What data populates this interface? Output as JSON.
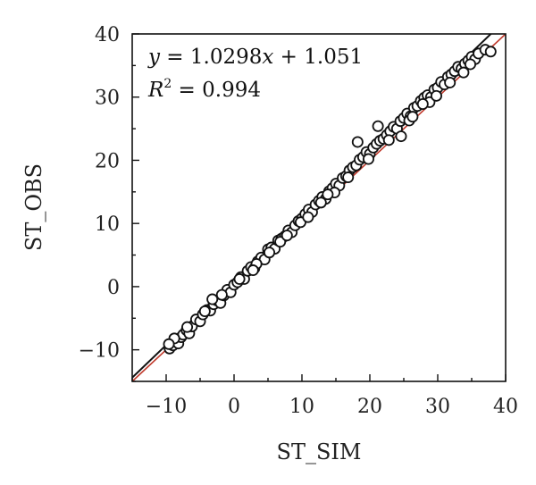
{
  "chart_data": {
    "type": "scatter",
    "title": "",
    "xlabel": "ST_SIM",
    "ylabel": "ST_OBS",
    "xlim": [
      -15,
      40
    ],
    "ylim": [
      -15,
      40
    ],
    "xticks": [
      -10,
      0,
      10,
      20,
      30,
      40
    ],
    "yticks": [
      -10,
      0,
      10,
      20,
      30,
      40
    ],
    "x_tick_labels": [
      "−10",
      "0",
      "10",
      "20",
      "30",
      "40"
    ],
    "y_tick_labels": [
      "−10",
      "0",
      "10",
      "20",
      "30",
      "40"
    ],
    "x_minor_step": 5,
    "y_minor_step": 5,
    "grid": false,
    "annotations": {
      "equation": {
        "y_var": "y",
        "equals": " = 1.0298",
        "x_var": "x",
        "rest": " + 1.051"
      },
      "r2": {
        "r": "R",
        "sup": "2",
        "rest": " = 0.994"
      }
    },
    "colors": {
      "fit_line": "#111111",
      "one_to_one_line": "#c0392b",
      "marker_edge": "#111111",
      "marker_fill": "#ffffff"
    },
    "series": [
      {
        "marker": "open-circle",
        "points": [
          [
            -9.5,
            -9.8
          ],
          [
            -9.0,
            -9.3
          ],
          [
            -8.6,
            -8.5
          ],
          [
            -8.2,
            -9.0
          ],
          [
            -7.8,
            -8.0
          ],
          [
            -7.5,
            -7.6
          ],
          [
            -7.0,
            -6.9
          ],
          [
            -6.6,
            -7.4
          ],
          [
            -6.2,
            -6.3
          ],
          [
            -5.6,
            -5.2
          ],
          [
            -5.0,
            -5.5
          ],
          [
            -4.6,
            -4.4
          ],
          [
            -4.0,
            -3.7
          ],
          [
            -3.5,
            -3.8
          ],
          [
            -3.0,
            -2.8
          ],
          [
            -2.5,
            -2.2
          ],
          [
            -2.0,
            -2.6
          ],
          [
            -1.5,
            -1.4
          ],
          [
            -1.0,
            -0.5
          ],
          [
            -0.5,
            -0.9
          ],
          [
            0.0,
            0.3
          ],
          [
            0.5,
            0.7
          ],
          [
            1.0,
            1.5
          ],
          [
            1.5,
            1.2
          ],
          [
            2.0,
            2.5
          ],
          [
            2.5,
            3.1
          ],
          [
            3.0,
            2.9
          ],
          [
            3.5,
            4.0
          ],
          [
            4.0,
            4.6
          ],
          [
            4.5,
            4.3
          ],
          [
            5.0,
            5.9
          ],
          [
            5.5,
            6.2
          ],
          [
            6.0,
            6.0
          ],
          [
            6.5,
            7.3
          ],
          [
            7.0,
            7.6
          ],
          [
            7.5,
            8.0
          ],
          [
            8.0,
            8.9
          ],
          [
            8.5,
            8.6
          ],
          [
            9.0,
            9.7
          ],
          [
            9.5,
            10.4
          ],
          [
            10.0,
            10.8
          ],
          [
            10.5,
            11.5
          ],
          [
            11.0,
            12.2
          ],
          [
            11.5,
            11.8
          ],
          [
            12.0,
            13.0
          ],
          [
            12.5,
            13.6
          ],
          [
            13.0,
            14.2
          ],
          [
            13.5,
            13.9
          ],
          [
            14.0,
            15.1
          ],
          [
            14.5,
            15.6
          ],
          [
            15.0,
            16.3
          ],
          [
            15.5,
            16.0
          ],
          [
            16.0,
            17.2
          ],
          [
            16.5,
            17.5
          ],
          [
            17.0,
            18.4
          ],
          [
            17.5,
            18.9
          ],
          [
            18.0,
            19.2
          ],
          [
            18.5,
            20.1
          ],
          [
            19.0,
            20.5
          ],
          [
            19.5,
            21.3
          ],
          [
            20.0,
            21.0
          ],
          [
            20.5,
            22.0
          ],
          [
            21.0,
            22.6
          ],
          [
            21.5,
            23.1
          ],
          [
            22.0,
            23.4
          ],
          [
            22.5,
            24.0
          ],
          [
            23.0,
            24.6
          ],
          [
            23.5,
            25.3
          ],
          [
            24.0,
            25.0
          ],
          [
            24.5,
            26.2
          ],
          [
            25.0,
            26.7
          ],
          [
            25.5,
            27.4
          ],
          [
            26.0,
            27.0
          ],
          [
            26.5,
            28.3
          ],
          [
            27.0,
            28.6
          ],
          [
            27.5,
            29.4
          ],
          [
            28.0,
            29.9
          ],
          [
            28.5,
            30.3
          ],
          [
            29.0,
            30.0
          ],
          [
            29.5,
            31.2
          ],
          [
            30.0,
            31.5
          ],
          [
            30.5,
            32.4
          ],
          [
            31.0,
            32.0
          ],
          [
            31.5,
            33.2
          ],
          [
            32.0,
            33.6
          ],
          [
            32.5,
            34.1
          ],
          [
            33.0,
            34.8
          ],
          [
            33.5,
            34.5
          ],
          [
            34.0,
            35.3
          ],
          [
            34.5,
            35.8
          ],
          [
            35.0,
            36.4
          ],
          [
            35.5,
            36.0
          ],
          [
            36.0,
            36.9
          ],
          [
            37.0,
            37.5
          ],
          [
            37.8,
            37.2
          ],
          [
            -8.8,
            -8.2
          ],
          [
            -6.9,
            -6.4
          ],
          [
            -4.3,
            -3.9
          ],
          [
            -1.8,
            -1.3
          ],
          [
            0.8,
            1.2
          ],
          [
            3.3,
            3.6
          ],
          [
            6.8,
            7.1
          ],
          [
            9.8,
            10.2
          ],
          [
            12.8,
            13.3
          ],
          [
            16.8,
            17.3
          ],
          [
            19.8,
            20.2
          ],
          [
            22.8,
            23.2
          ],
          [
            25.8,
            26.3
          ],
          [
            28.8,
            29.2
          ],
          [
            31.8,
            32.3
          ],
          [
            34.8,
            35.2
          ],
          [
            18.2,
            22.9
          ],
          [
            21.2,
            25.4
          ],
          [
            24.6,
            23.8
          ],
          [
            26.3,
            26.9
          ],
          [
            -3.2,
            -2.0
          ],
          [
            5.2,
            5.4
          ],
          [
            10.9,
            11.0
          ],
          [
            14.8,
            14.9
          ],
          [
            29.8,
            30.2
          ],
          [
            33.8,
            33.9
          ],
          [
            7.8,
            8.1
          ],
          [
            2.8,
            2.6
          ],
          [
            -9.6,
            -9.1
          ],
          [
            13.8,
            14.6
          ],
          [
            27.8,
            28.9
          ]
        ]
      }
    ],
    "fit_line": {
      "slope": 1.0298,
      "intercept": 1.051
    },
    "one_to_one_line": {
      "slope": 1.0,
      "intercept": 0.0
    }
  }
}
